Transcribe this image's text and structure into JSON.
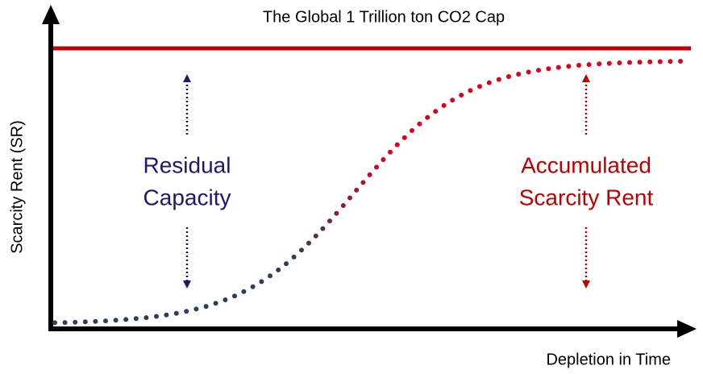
{
  "title": "The Global 1 Trillion ton CO2 Cap",
  "y_axis_label": "Scarcity Rent (SR)",
  "x_axis_label": "Depletion in Time",
  "labels": [
    {
      "lines": [
        "Residual",
        "Capacity"
      ]
    },
    {
      "lines": [
        "Accumulated",
        "Scarcity Rent"
      ]
    }
  ]
}
